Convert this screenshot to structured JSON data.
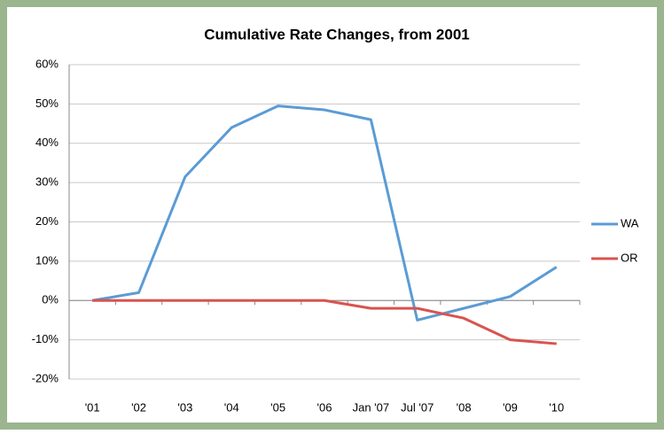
{
  "chart_data": {
    "type": "line",
    "title": "Cumulative Rate Changes, from 2001",
    "categories": [
      "'01",
      "'02",
      "'03",
      "'04",
      "'05",
      "'06",
      "Jan '07",
      "Jul '07",
      "'08",
      "'09",
      "'10"
    ],
    "series": [
      {
        "name": "WA",
        "color": "#5b9bd5",
        "values": [
          0,
          2,
          31.5,
          44,
          49.5,
          48.5,
          46,
          -5,
          -2,
          1,
          8.5
        ]
      },
      {
        "name": "OR",
        "color": "#d9534f",
        "values": [
          0,
          0,
          0,
          0,
          0,
          0,
          -2,
          -2,
          -4.5,
          -10,
          -11
        ]
      }
    ],
    "ylim": [
      -20,
      60
    ],
    "yticks": [
      {
        "value": -20,
        "label": "-20%"
      },
      {
        "value": -10,
        "label": "-10%"
      },
      {
        "value": 0,
        "label": "0%"
      },
      {
        "value": 10,
        "label": "10%"
      },
      {
        "value": 20,
        "label": "20%"
      },
      {
        "value": 30,
        "label": "30%"
      },
      {
        "value": 40,
        "label": "40%"
      },
      {
        "value": 50,
        "label": "50%"
      },
      {
        "value": 60,
        "label": "60%"
      }
    ],
    "grid": true,
    "legend": "right"
  }
}
